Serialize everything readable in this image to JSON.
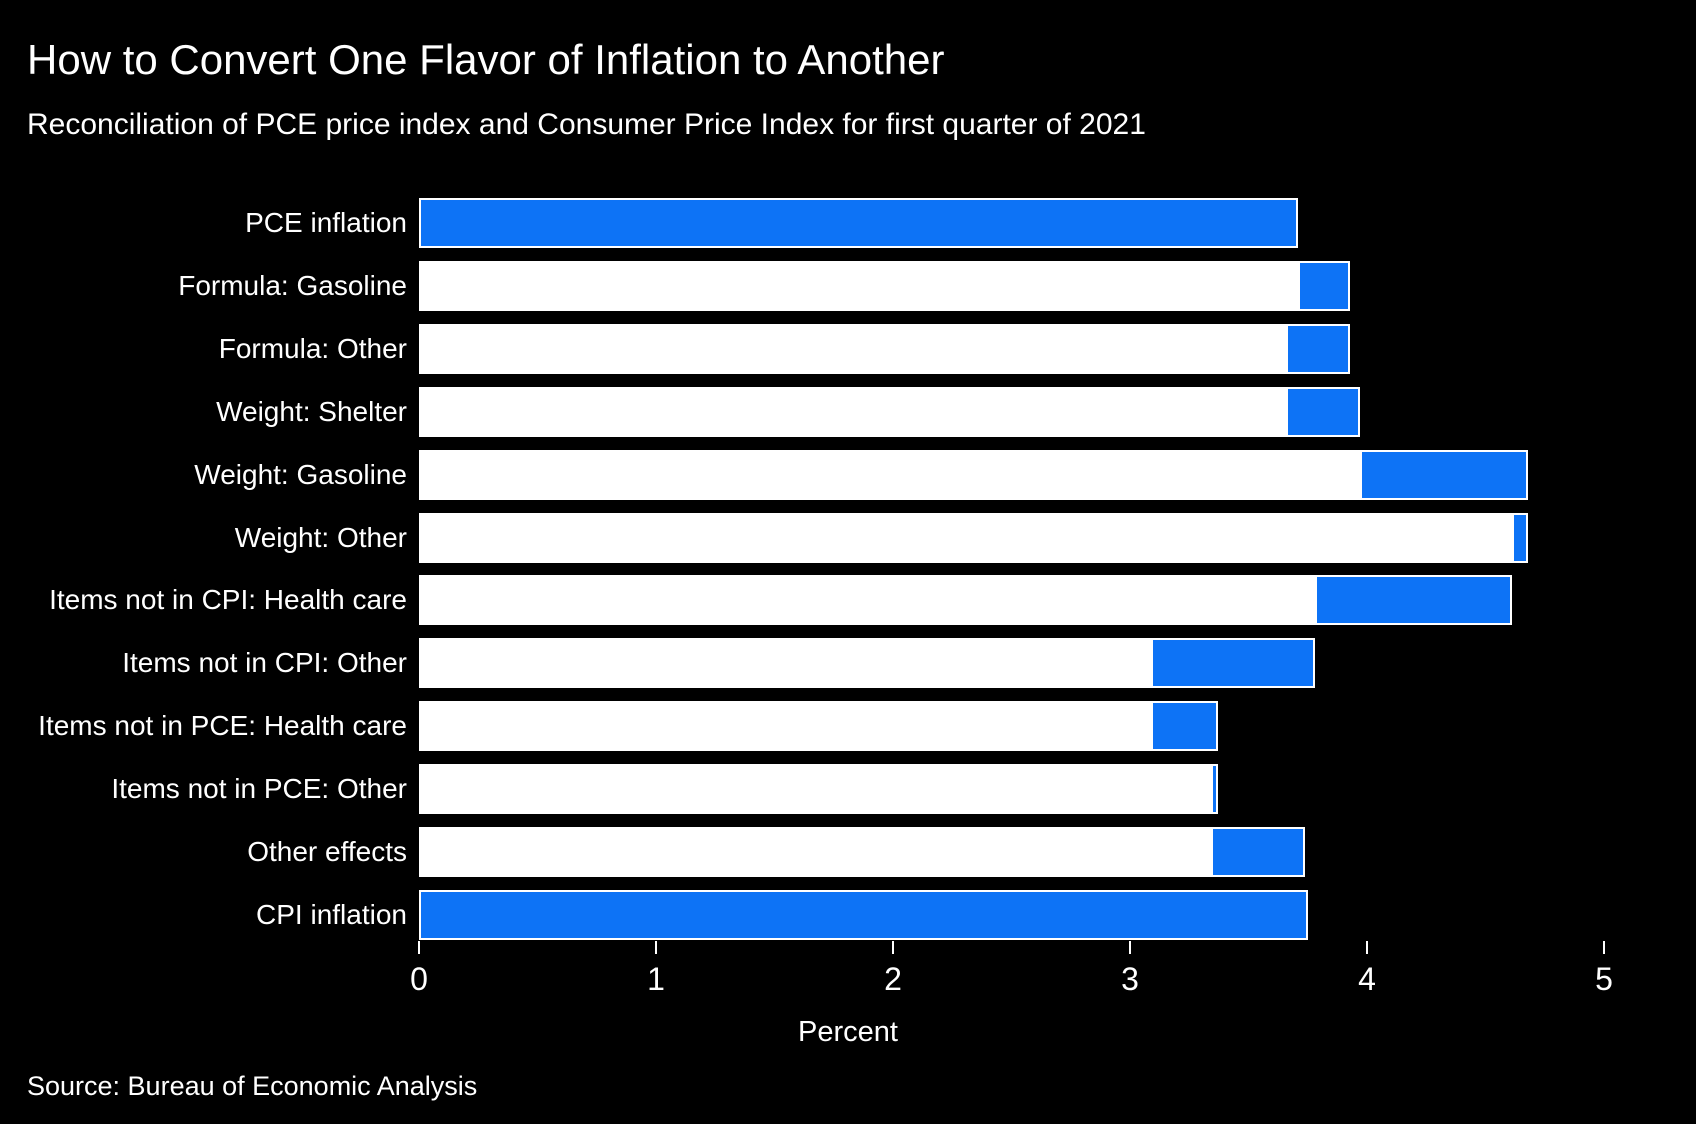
{
  "header": {
    "title": "How to Convert One Flavor of Inflation to Another",
    "subtitle": "Reconciliation of PCE price index and Consumer Price Index for first quarter of 2021"
  },
  "footer": {
    "source": "Source: Bureau of Economic Analysis"
  },
  "chart_data": {
    "type": "bar",
    "variant": "horizontal_waterfall",
    "title": "How to Convert One Flavor of Inflation to Another",
    "subtitle": "Reconciliation of PCE price index and Consumer Price Index for first quarter of 2021",
    "xlabel": "Percent",
    "xlim": [
      0,
      5
    ],
    "xticks": [
      0,
      1,
      2,
      3,
      4,
      5
    ],
    "xtick_labels": [
      "0",
      "1",
      "2",
      "3",
      "4",
      "5"
    ],
    "grid": false,
    "legend": null,
    "unit": "percent",
    "categories": [
      "PCE inflation",
      "Formula: Gasoline",
      "Formula: Other",
      "Weight: Shelter",
      "Weight: Gasoline",
      "Weight: Other",
      "Items not in CPI: Health care",
      "Items not in CPI: Other",
      "Items not in PCE: Health care",
      "Items not in PCE: Other",
      "Other effects",
      "CPI inflation"
    ],
    "rows": [
      {
        "label": "PCE inflation",
        "kind": "total",
        "segment": [
          0.0,
          3.71
        ],
        "cumulative": 3.71,
        "delta": null
      },
      {
        "label": "Formula: Gasoline",
        "kind": "increase",
        "segment": [
          3.71,
          3.93
        ],
        "cumulative": 3.93,
        "delta": 0.22
      },
      {
        "label": "Formula: Other",
        "kind": "decrease",
        "segment": [
          3.66,
          3.93
        ],
        "cumulative": 3.66,
        "delta": -0.27
      },
      {
        "label": "Weight: Shelter",
        "kind": "increase",
        "segment": [
          3.66,
          3.97
        ],
        "cumulative": 3.97,
        "delta": 0.31
      },
      {
        "label": "Weight: Gasoline",
        "kind": "increase",
        "segment": [
          3.97,
          4.68
        ],
        "cumulative": 4.68,
        "delta": 0.71
      },
      {
        "label": "Weight: Other",
        "kind": "decrease",
        "segment": [
          4.61,
          4.68
        ],
        "cumulative": 4.61,
        "delta": -0.07
      },
      {
        "label": "Items not in CPI: Health care",
        "kind": "decrease",
        "segment": [
          3.78,
          4.61
        ],
        "cumulative": 3.78,
        "delta": -0.83
      },
      {
        "label": "Items not in CPI: Other",
        "kind": "decrease",
        "segment": [
          3.09,
          3.78
        ],
        "cumulative": 3.09,
        "delta": -0.69
      },
      {
        "label": "Items not in PCE: Health care",
        "kind": "increase",
        "segment": [
          3.09,
          3.37
        ],
        "cumulative": 3.37,
        "delta": 0.28
      },
      {
        "label": "Items not in PCE: Other",
        "kind": "decrease",
        "segment": [
          3.34,
          3.37
        ],
        "cumulative": 3.34,
        "delta": -0.03
      },
      {
        "label": "Other effects",
        "kind": "increase",
        "segment": [
          3.34,
          3.74
        ],
        "cumulative": 3.74,
        "delta": 0.4
      },
      {
        "label": "CPI inflation",
        "kind": "total",
        "segment": [
          0.0,
          3.75
        ],
        "cumulative": 3.75,
        "delta": null
      }
    ],
    "colors": {
      "background": "#000000",
      "bar_fill": "#0d73f6",
      "bar_base": "#ffffff",
      "text": "#ffffff"
    }
  }
}
